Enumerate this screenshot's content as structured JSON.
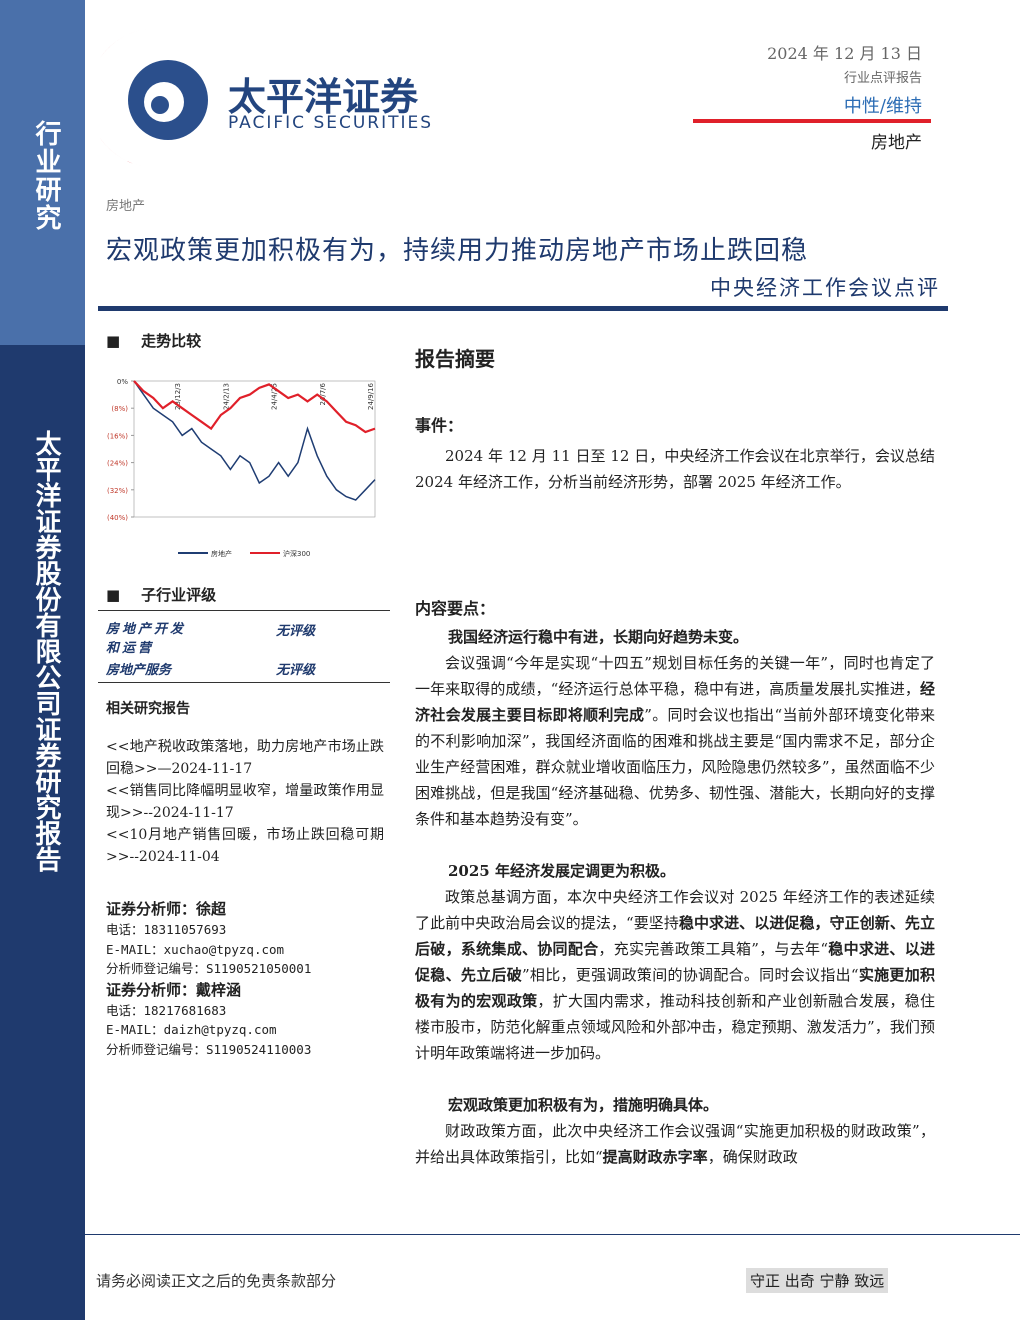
{
  "header": {
    "logo_cn": "太平洋证券",
    "logo_en": "PACIFIC SECURITIES",
    "date": "2024 年 12 月 13 日",
    "report_type": "行业点评报告",
    "rating": "中性/维持",
    "industry": "房地产"
  },
  "sidebar": {
    "top": "行业研究",
    "bottom": "太平洋证券股份有限公司证券研究报告"
  },
  "category": "房地产",
  "title": "宏观政策更加积极有为，持续用力推动房地产市场止跌回稳",
  "subtitle": "中央经济工作会议点评",
  "left": {
    "trend_title": "走势比较",
    "chart_data": {
      "type": "line",
      "categories": [
        null,
        null,
        null,
        null,
        null,
        "23/12/3",
        null,
        null,
        null,
        null,
        "24/2/13",
        null,
        null,
        null,
        null,
        "24/4/25",
        null,
        null,
        null,
        null,
        "24/7/6",
        null,
        null,
        null,
        null,
        "24/9/16"
      ],
      "series": [
        {
          "name": "房地产",
          "color": "#1f3d73",
          "values": [
            0,
            -4,
            -8,
            -10,
            -12,
            -16,
            -14,
            -18,
            -20,
            -22,
            -26,
            -22,
            -24,
            -30,
            -28,
            -24,
            -28,
            -24,
            -14,
            -22,
            -28,
            -32,
            -34,
            -35,
            -32,
            -29
          ]
        },
        {
          "name": "沪深300",
          "color": "#e0202a",
          "values": [
            0,
            -3,
            -5,
            -8,
            -6,
            -8,
            -10,
            -12,
            -14,
            -10,
            -8,
            -5,
            -4,
            -2,
            -1,
            -3,
            -5,
            -4,
            -6,
            -4,
            -6,
            -9,
            -12,
            -13,
            -15,
            -14
          ]
        }
      ],
      "ylim": [
        0,
        -40
      ],
      "yticks": [
        {
          "value": 0,
          "label": "0%"
        },
        {
          "value": -8,
          "label": "(8%)"
        },
        {
          "value": -16,
          "label": "(16%)"
        },
        {
          "value": -24,
          "label": "(24%)"
        },
        {
          "value": -32,
          "label": "(32%)"
        },
        {
          "value": -40,
          "label": "(40%)"
        }
      ]
    },
    "subind_title": "子行业评级",
    "subind_rows": [
      [
        "房地产开发和运营",
        "无评级"
      ],
      [
        "房地产服务",
        "无评级"
      ]
    ],
    "related_title": "相关研究报告",
    "related": [
      "<<地产税收政策落地，助力房地产市场止跌回稳>>—2024-11-17",
      "<<销售同比降幅明显收窄，增量政策作用显现>>--2024-11-17",
      "<<10月地产销售回暖，市场止跌回稳可期>>--2024-11-04"
    ],
    "analysts": [
      {
        "label": "证券分析师：徐超",
        "phone": "电话：18311057693",
        "email": "E-MAIL：xuchao@tpyzq.com",
        "reg": "分析师登记编号：S1190521050001"
      },
      {
        "label": "证券分析师：戴梓涵",
        "phone": "电话：18217681683",
        "email": "E-MAIL：daizh@tpyzq.com",
        "reg": "分析师登记编号：S1190524110003"
      }
    ]
  },
  "main": {
    "summary_title": "报告摘要",
    "event_title": "事件：",
    "event_text": "2024 年 12 月 11 日至 12 日，中央经济工作会议在北京举行，会议总结 2024 年经济工作，分析当前经济形势，部署 2025 年经济工作。",
    "points_title": "内容要点：",
    "sections": [
      {
        "heading": "我国经济运行稳中有进，长期向好趋势未变。",
        "runs": [
          {
            "t": "会议强调“今年是实现“十四五”规划目标任务的关键一年”，同时也肯定了一年来取得的成绩，“经济运行总体平稳，稳中有进，高质量发展扎实推进，"
          },
          {
            "t": "经济社会发展主要目标即将顺利完成",
            "b": true
          },
          {
            "t": "”。同时会议也指出“当前外部环境变化带来的不利影响加深”，我国经济面临的困难和挑战主要是“国内需求不足，部分企业生产经营困难，群众就业增收面临压力，风险隐患仍然较多”，虽然面临不少困难挑战，但是我国“经济基础稳、优势多、韧性强、潜能大，长期向好的支撑条件和基本趋势没有变”。"
          }
        ]
      },
      {
        "heading": "2025 年经济发展定调更为积极。",
        "runs": [
          {
            "t": "政策总基调方面，本次中央经济工作会议对 2025 年经济工作的表述延续了此前中央政治局会议的提法，“要坚持"
          },
          {
            "t": "稳中求进、以进促稳，守正创新、先立后破，系统集成、协同配合",
            "b": true
          },
          {
            "t": "，充实完善政策工具箱”，与去年“"
          },
          {
            "t": "稳中求进、以进促稳、先立后破",
            "b": true
          },
          {
            "t": "”相比，更强调政策间的协调配合。同时会议指出“"
          },
          {
            "t": "实施更加积极有为的宏观政策",
            "b": true
          },
          {
            "t": "，扩大国内需求，推动科技创新和产业创新融合发展，稳住楼市股市，防范化解重点领域风险和外部冲击，稳定预期、激发活力”，我们预计明年政策端将进一步加码。"
          }
        ]
      },
      {
        "heading": "宏观政策更加积极有为，措施明确具体。",
        "runs": [
          {
            "t": "财政政策方面，此次中央经济工作会议强调“实施更加积极的财政政策”，并给出具体政策指引，比如“"
          },
          {
            "t": "提高财政赤字率",
            "b": true
          },
          {
            "t": "，确保财政政"
          }
        ]
      }
    ]
  },
  "footer": {
    "left": "请务必阅读正文之后的免责条款部分",
    "right": "守正 出奇 宁静 致远"
  }
}
